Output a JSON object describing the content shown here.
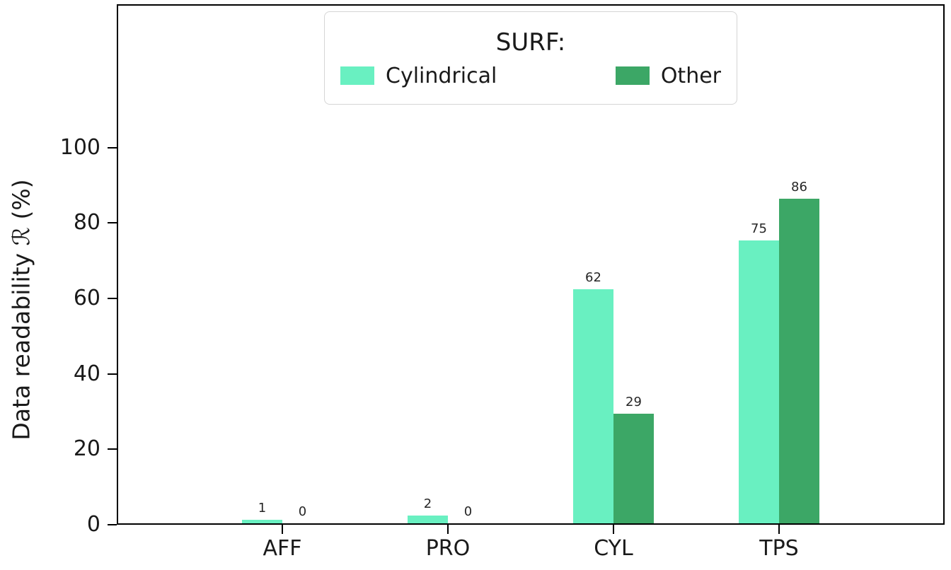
{
  "chart_data": {
    "type": "bar",
    "title": "",
    "categories": [
      "AFF",
      "PRO",
      "CYL",
      "TPS"
    ],
    "series": [
      {
        "name": "Cylindrical",
        "color": "#69f0c1",
        "values": [
          1,
          2,
          62,
          75
        ]
      },
      {
        "name": "Other",
        "color": "#3ca766",
        "values": [
          0,
          0,
          29,
          86
        ]
      }
    ],
    "legend_title": "SURF:",
    "legend_position": "top-center",
    "xlabel": "",
    "ylabel": "Data readability ℛ (%)",
    "yticks": [
      0,
      20,
      40,
      60,
      80,
      100
    ],
    "ylim": [
      0,
      138
    ],
    "grid": false,
    "show_bar_labels": true
  }
}
